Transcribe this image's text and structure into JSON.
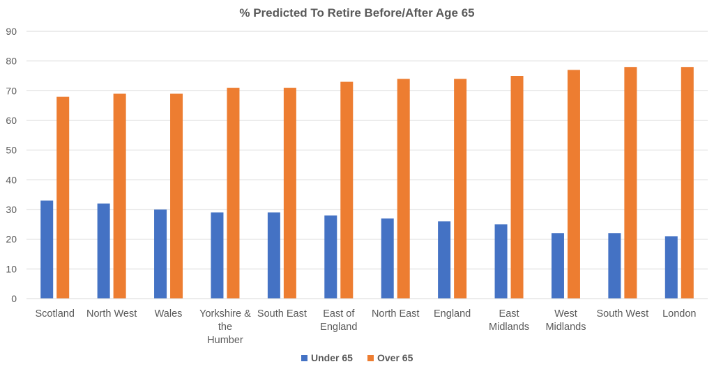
{
  "chart_data": {
    "type": "bar",
    "title": "% Predicted To Retire Before/After Age 65",
    "categories": [
      [
        "Scotland"
      ],
      [
        "North West"
      ],
      [
        "Wales"
      ],
      [
        "Yorkshire &",
        "the",
        "Humber"
      ],
      [
        "South East"
      ],
      [
        "East of",
        "England"
      ],
      [
        "North East"
      ],
      [
        "England"
      ],
      [
        "East",
        "Midlands"
      ],
      [
        "West",
        "Midlands"
      ],
      [
        "South West"
      ],
      [
        "London"
      ]
    ],
    "series": [
      {
        "name": "Under 65",
        "color": "#4472c4",
        "values": [
          33,
          32,
          30,
          29,
          29,
          28,
          27,
          26,
          25,
          22,
          22,
          21
        ]
      },
      {
        "name": "Over 65",
        "color": "#ed7d31",
        "values": [
          68,
          69,
          69,
          71,
          71,
          73,
          74,
          74,
          75,
          77,
          78,
          78
        ]
      }
    ],
    "ylim": [
      0,
      90
    ],
    "yticks": [
      0,
      10,
      20,
      30,
      40,
      50,
      60,
      70,
      80,
      90
    ],
    "grid": true,
    "legend_position": "bottom"
  }
}
